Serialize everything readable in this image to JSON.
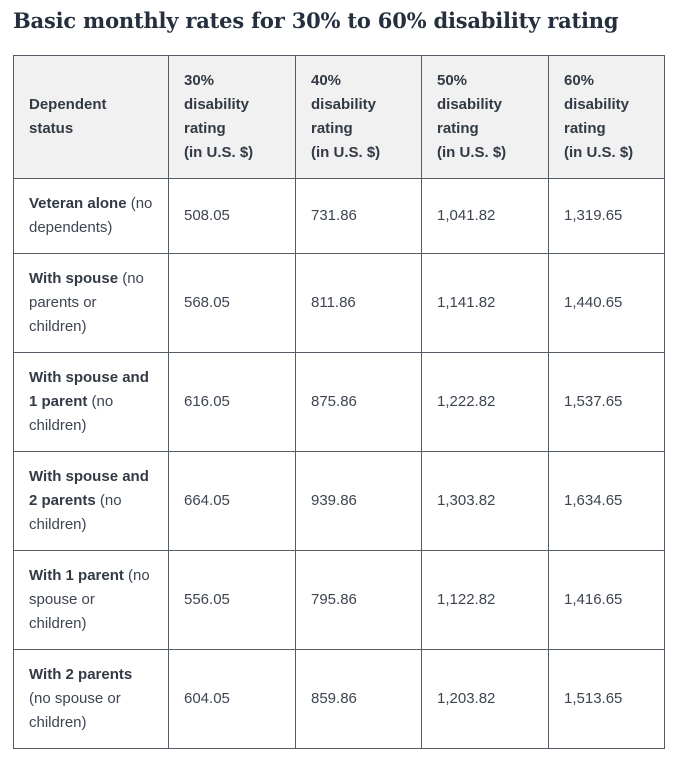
{
  "page": {
    "title": "Basic monthly rates for 30% to 60% disability rating"
  },
  "table": {
    "columns": [
      {
        "label": "Dependent status",
        "unit": ""
      },
      {
        "label": "30% disability rating",
        "unit": "(in U.S. $)"
      },
      {
        "label": "40% disability rating",
        "unit": "(in U.S. $)"
      },
      {
        "label": "50% disability rating",
        "unit": "(in U.S. $)"
      },
      {
        "label": "60% disability rating",
        "unit": "(in U.S. $)"
      }
    ],
    "rows": [
      {
        "bold": "Veteran alone",
        "rest": "(no dependents)",
        "values": [
          "508.05",
          "731.86",
          "1,041.82",
          "1,319.65"
        ]
      },
      {
        "bold": "With spouse",
        "rest": "(no parents or children)",
        "values": [
          "568.05",
          "811.86",
          "1,141.82",
          "1,440.65"
        ]
      },
      {
        "bold": "With spouse and 1 parent",
        "rest": "(no children)",
        "values": [
          "616.05",
          "875.86",
          "1,222.82",
          "1,537.65"
        ]
      },
      {
        "bold": "With spouse and 2 parents",
        "rest": "(no children)",
        "values": [
          "664.05",
          "939.86",
          "1,303.82",
          "1,634.65"
        ]
      },
      {
        "bold": "With 1 parent",
        "rest": "(no spouse or children)",
        "values": [
          "556.05",
          "795.86",
          "1,122.82",
          "1,416.65"
        ]
      },
      {
        "bold": "With 2 parents",
        "rest": "(no spouse or children)",
        "values": [
          "604.05",
          "859.86",
          "1,203.82",
          "1,513.65"
        ]
      }
    ]
  },
  "colors": {
    "title_text": "#252f3e",
    "header_bg": "#f1f1f1",
    "header_text": "#323a45",
    "body_text": "#3d4551",
    "border": "#565c65"
  }
}
